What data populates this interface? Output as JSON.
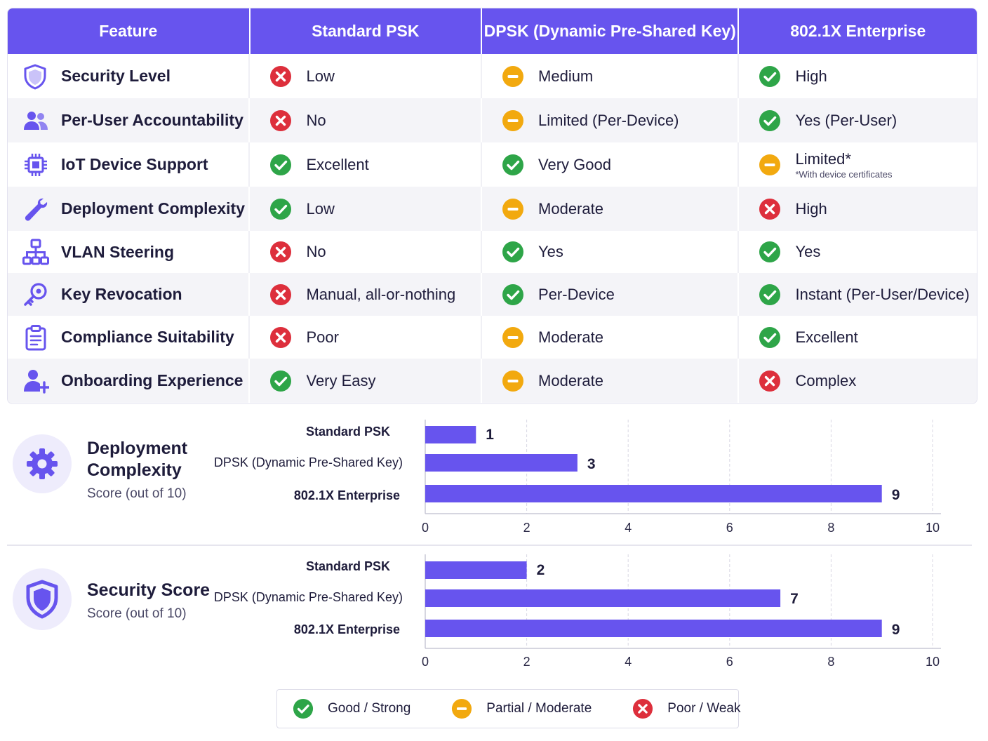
{
  "colors": {
    "accent": "#6754ee",
    "good": "#2ea548",
    "partial": "#f2a90f",
    "poor": "#dd2f3c",
    "icon": "#6754ee"
  },
  "table": {
    "headers": [
      "Feature",
      "Standard PSK",
      "DPSK (Dynamic Pre-Shared Key)",
      "802.1X Enterprise"
    ],
    "rows": [
      {
        "feature": "Security Level",
        "icon": "shield-icon",
        "cells": [
          {
            "status": "poor",
            "text": "Low"
          },
          {
            "status": "partial",
            "text": "Medium"
          },
          {
            "status": "good",
            "text": "High"
          }
        ]
      },
      {
        "feature": "Per-User Accountability",
        "icon": "users-icon",
        "cells": [
          {
            "status": "poor",
            "text": "No"
          },
          {
            "status": "partial",
            "text": "Limited (Per-Device)"
          },
          {
            "status": "good",
            "text": "Yes (Per-User)"
          }
        ]
      },
      {
        "feature": "IoT Device Support",
        "icon": "chip-icon",
        "cells": [
          {
            "status": "good",
            "text": "Excellent"
          },
          {
            "status": "good",
            "text": "Very Good"
          },
          {
            "status": "partial",
            "text": "Limited*",
            "note": "*With device certificates"
          }
        ]
      },
      {
        "feature": "Deployment Complexity",
        "icon": "wrench-icon",
        "cells": [
          {
            "status": "good",
            "text": "Low"
          },
          {
            "status": "partial",
            "text": "Moderate"
          },
          {
            "status": "poor",
            "text": "High"
          }
        ]
      },
      {
        "feature": "VLAN Steering",
        "icon": "network-icon",
        "cells": [
          {
            "status": "poor",
            "text": "No"
          },
          {
            "status": "good",
            "text": "Yes"
          },
          {
            "status": "good",
            "text": "Yes"
          }
        ]
      },
      {
        "feature": "Key Revocation",
        "icon": "key-icon",
        "cells": [
          {
            "status": "poor",
            "text": "Manual, all-or-nothing"
          },
          {
            "status": "good",
            "text": "Per-Device"
          },
          {
            "status": "good",
            "text": "Instant (Per-User/Device)"
          }
        ]
      },
      {
        "feature": "Compliance Suitability",
        "icon": "clipboard-icon",
        "cells": [
          {
            "status": "poor",
            "text": "Poor"
          },
          {
            "status": "partial",
            "text": "Moderate"
          },
          {
            "status": "good",
            "text": "Excellent"
          }
        ]
      },
      {
        "feature": "Onboarding Experience",
        "icon": "add-user-icon",
        "cells": [
          {
            "status": "good",
            "text": "Very Easy"
          },
          {
            "status": "partial",
            "text": "Moderate"
          },
          {
            "status": "poor",
            "text": "Complex"
          }
        ]
      }
    ]
  },
  "chart_data": [
    {
      "type": "bar",
      "orientation": "horizontal",
      "title": "Deployment Complexity",
      "subtitle": "Score (out of 10)",
      "icon": "gear-icon",
      "categories": [
        "Standard PSK",
        "DPSK (Dynamic Pre-Shared Key)",
        "802.1X Enterprise"
      ],
      "values": [
        1,
        3,
        9
      ],
      "xlim": [
        0,
        10
      ],
      "xticks": [
        0,
        2,
        4,
        6,
        8,
        10
      ],
      "grid": true,
      "color": "#6754ee"
    },
    {
      "type": "bar",
      "orientation": "horizontal",
      "title": "Security Score",
      "subtitle": "Score (out of 10)",
      "icon": "shield-icon",
      "categories": [
        "Standard PSK",
        "DPSK (Dynamic Pre-Shared Key)",
        "802.1X Enterprise"
      ],
      "values": [
        2,
        7,
        9
      ],
      "xlim": [
        0,
        10
      ],
      "xticks": [
        0,
        2,
        4,
        6,
        8,
        10
      ],
      "grid": true,
      "color": "#6754ee"
    }
  ],
  "legend": [
    {
      "status": "good",
      "label": "Good / Strong"
    },
    {
      "status": "partial",
      "label": "Partial / Moderate"
    },
    {
      "status": "poor",
      "label": "Poor / Weak"
    }
  ]
}
